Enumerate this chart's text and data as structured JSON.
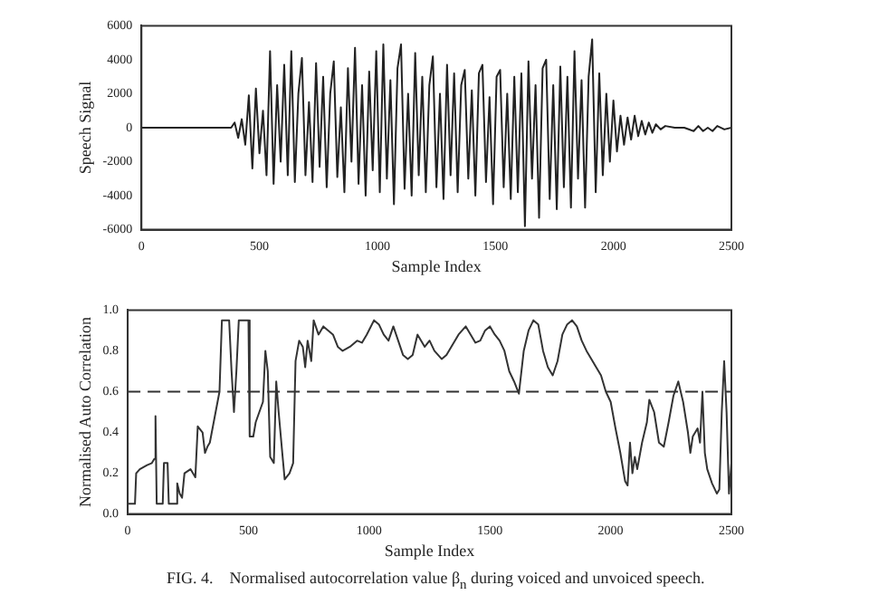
{
  "chart_data": [
    {
      "type": "line",
      "xlabel": "Sample Index",
      "ylabel": "Speech Signal",
      "xlim": [
        0,
        2500
      ],
      "xticks": [
        0,
        500,
        1000,
        1500,
        2000,
        2500
      ],
      "ylim": [
        -6000,
        6000
      ],
      "yticks": [
        -6000,
        -4000,
        -2000,
        0,
        2000,
        4000,
        6000
      ],
      "series": [
        {
          "color": "#222222",
          "x": [
            0,
            380,
            395,
            410,
            425,
            440,
            455,
            470,
            485,
            500,
            515,
            530,
            545,
            560,
            575,
            590,
            605,
            620,
            635,
            650,
            665,
            680,
            695,
            710,
            725,
            740,
            755,
            770,
            785,
            800,
            815,
            830,
            845,
            860,
            875,
            890,
            905,
            920,
            935,
            950,
            965,
            980,
            995,
            1010,
            1025,
            1040,
            1055,
            1070,
            1085,
            1100,
            1115,
            1130,
            1145,
            1160,
            1175,
            1190,
            1205,
            1220,
            1235,
            1250,
            1265,
            1280,
            1295,
            1310,
            1325,
            1340,
            1355,
            1370,
            1385,
            1400,
            1415,
            1430,
            1445,
            1460,
            1475,
            1490,
            1505,
            1520,
            1535,
            1550,
            1565,
            1580,
            1595,
            1610,
            1625,
            1640,
            1655,
            1670,
            1685,
            1700,
            1715,
            1730,
            1745,
            1760,
            1775,
            1790,
            1805,
            1820,
            1835,
            1850,
            1865,
            1880,
            1895,
            1910,
            1925,
            1940,
            1955,
            1970,
            1985,
            2000,
            2015,
            2030,
            2045,
            2060,
            2075,
            2090,
            2105,
            2120,
            2135,
            2150,
            2165,
            2180,
            2200,
            2220,
            2260,
            2300,
            2340,
            2360,
            2380,
            2400,
            2420,
            2440,
            2470,
            2500
          ],
          "values": [
            0,
            0,
            300,
            -600,
            500,
            -1000,
            1900,
            -2400,
            2300,
            -1500,
            1000,
            -2800,
            4500,
            -3300,
            2500,
            -2000,
            3700,
            -2800,
            4500,
            -3200,
            2000,
            4100,
            -2800,
            1500,
            -3200,
            3800,
            -2300,
            3000,
            -3500,
            2000,
            3900,
            -2900,
            1200,
            -3800,
            3500,
            -2000,
            4700,
            -3300,
            2500,
            -4000,
            3300,
            -2500,
            4500,
            -3800,
            4900,
            -3000,
            2800,
            -4500,
            3500,
            4900,
            -3600,
            2000,
            -4000,
            4400,
            -2800,
            3000,
            -3800,
            2500,
            4200,
            -3500,
            2000,
            -4200,
            3700,
            -2800,
            3200,
            -3800,
            2500,
            3400,
            -3000,
            2200,
            -4000,
            3200,
            3700,
            -3200,
            1800,
            -4500,
            3000,
            3400,
            -3500,
            2000,
            -4200,
            3000,
            -3800,
            3200,
            -5800,
            3900,
            -3000,
            2500,
            -5300,
            3500,
            4000,
            -4200,
            2500,
            -4800,
            3600,
            -3500,
            3000,
            -4700,
            4500,
            -3000,
            2800,
            -4700,
            3000,
            5200,
            -3800,
            3200,
            -2800,
            2000,
            -2000,
            1600,
            -1400,
            700,
            -1000,
            600,
            -700,
            700,
            -500,
            400,
            -400,
            300,
            -300,
            200,
            -100,
            100,
            0,
            0,
            -200,
            100,
            -200,
            0,
            -200,
            100,
            -100,
            0
          ]
        }
      ]
    },
    {
      "type": "line",
      "xlabel": "Sample Index",
      "ylabel": "Normalised Auto Correlation",
      "xlim": [
        0,
        2500
      ],
      "xticks": [
        0,
        500,
        1000,
        1500,
        2000,
        2500
      ],
      "ylim": [
        0,
        1
      ],
      "yticks": [
        {
          "value": 0,
          "label": "0.0"
        },
        {
          "value": 0.2,
          "label": "0.2"
        },
        {
          "value": 0.4,
          "label": "0.4"
        },
        {
          "value": 0.6,
          "label": "0.6"
        },
        {
          "value": 0.8,
          "label": "0.8"
        },
        {
          "value": 1,
          "label": "1.0"
        }
      ],
      "ref_lines": [
        {
          "axis": "y",
          "value": 0.6,
          "color": "#333333",
          "line_style": "dashed"
        }
      ],
      "annotations": [
        "FIG. 4.    Normalised autocorrelation value β$_{n}$ during voiced and unvoiced speech."
      ],
      "series": [
        {
          "color": "#333333",
          "x": [
            0,
            30,
            35,
            50,
            80,
            100,
            110,
            115,
            120,
            145,
            150,
            165,
            170,
            200,
            205,
            215,
            225,
            235,
            260,
            270,
            280,
            290,
            310,
            320,
            330,
            340,
            380,
            390,
            420,
            430,
            440,
            450,
            460,
            500,
            505,
            520,
            530,
            545,
            560,
            570,
            580,
            590,
            605,
            615,
            625,
            640,
            650,
            670,
            685,
            695,
            710,
            725,
            735,
            745,
            760,
            770,
            790,
            810,
            830,
            850,
            870,
            890,
            920,
            950,
            970,
            990,
            1020,
            1040,
            1060,
            1080,
            1100,
            1120,
            1140,
            1160,
            1180,
            1200,
            1230,
            1250,
            1270,
            1300,
            1320,
            1340,
            1370,
            1400,
            1420,
            1440,
            1460,
            1480,
            1500,
            1520,
            1540,
            1560,
            1580,
            1600,
            1620,
            1640,
            1660,
            1680,
            1700,
            1720,
            1740,
            1760,
            1780,
            1800,
            1820,
            1840,
            1860,
            1880,
            1900,
            1920,
            1940,
            1960,
            1980,
            2000,
            2020,
            2040,
            2060,
            2070,
            2080,
            2090,
            2100,
            2110,
            2130,
            2150,
            2160,
            2180,
            2200,
            2220,
            2240,
            2260,
            2280,
            2300,
            2320,
            2330,
            2340,
            2360,
            2370,
            2380,
            2390,
            2400,
            2420,
            2440,
            2450,
            2460,
            2470,
            2480,
            2490,
            2500
          ],
          "values": [
            0.05,
            0.05,
            0.2,
            0.22,
            0.24,
            0.25,
            0.27,
            0.48,
            0.05,
            0.05,
            0.25,
            0.25,
            0.05,
            0.05,
            0.15,
            0.1,
            0.08,
            0.2,
            0.22,
            0.2,
            0.18,
            0.43,
            0.4,
            0.3,
            0.33,
            0.35,
            0.6,
            0.95,
            0.95,
            0.7,
            0.5,
            0.7,
            0.95,
            0.95,
            0.38,
            0.38,
            0.45,
            0.5,
            0.55,
            0.8,
            0.7,
            0.28,
            0.25,
            0.65,
            0.5,
            0.3,
            0.17,
            0.2,
            0.25,
            0.75,
            0.85,
            0.82,
            0.72,
            0.85,
            0.75,
            0.95,
            0.88,
            0.92,
            0.9,
            0.88,
            0.82,
            0.8,
            0.82,
            0.85,
            0.84,
            0.88,
            0.95,
            0.93,
            0.88,
            0.85,
            0.92,
            0.85,
            0.78,
            0.76,
            0.78,
            0.88,
            0.82,
            0.85,
            0.8,
            0.76,
            0.78,
            0.82,
            0.88,
            0.92,
            0.88,
            0.84,
            0.85,
            0.9,
            0.92,
            0.88,
            0.85,
            0.8,
            0.7,
            0.65,
            0.59,
            0.8,
            0.9,
            0.95,
            0.93,
            0.8,
            0.72,
            0.68,
            0.75,
            0.88,
            0.93,
            0.95,
            0.92,
            0.85,
            0.8,
            0.76,
            0.72,
            0.68,
            0.6,
            0.55,
            0.42,
            0.3,
            0.16,
            0.14,
            0.35,
            0.2,
            0.28,
            0.22,
            0.35,
            0.45,
            0.56,
            0.5,
            0.35,
            0.33,
            0.45,
            0.58,
            0.65,
            0.55,
            0.4,
            0.3,
            0.38,
            0.42,
            0.35,
            0.6,
            0.3,
            0.22,
            0.15,
            0.1,
            0.12,
            0.5,
            0.75,
            0.5,
            0.1,
            0.25
          ]
        }
      ]
    }
  ]
}
